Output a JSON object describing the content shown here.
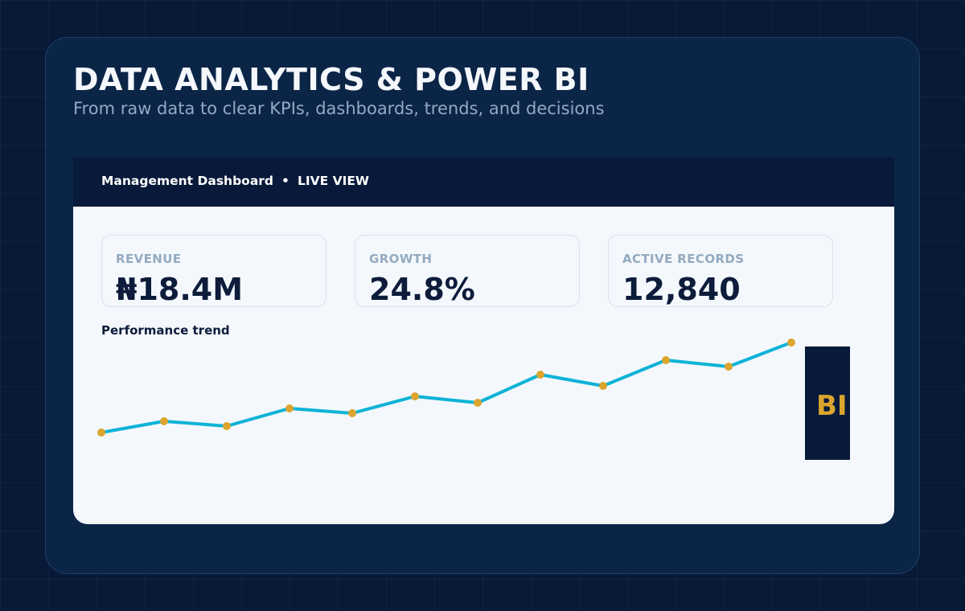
{
  "header": {
    "title": "DATA ANALYTICS & POWER BI",
    "subtitle": "From raw data to clear KPIs, dashboards, trends, and decisions"
  },
  "dashboard": {
    "name": "Management Dashboard",
    "separator": "•",
    "status": "LIVE VIEW"
  },
  "kpis": [
    {
      "label": "REVENUE",
      "value": "₦18.4M"
    },
    {
      "label": "GROWTH",
      "value": "24.8%"
    },
    {
      "label": "ACTIVE RECORDS",
      "value": "12,840"
    }
  ],
  "trend": {
    "label": "Performance trend"
  },
  "badge": {
    "text": "BI"
  },
  "colors": {
    "page_bg": "#081a38",
    "panel_bg": "#0b2547",
    "dashboard_bg": "#f4f8fc",
    "header_bar": "#08193a",
    "line": "#0db3d6",
    "marker": "#dba52e",
    "kpi_value": "#0d1c3b",
    "kpi_label": "#93aac0"
  },
  "chart_data": {
    "type": "line",
    "title": "Performance trend",
    "xlabel": "",
    "ylabel": "",
    "grid": false,
    "x": [
      1,
      2,
      3,
      4,
      5,
      6,
      7,
      8,
      9,
      10,
      11,
      12
    ],
    "values": [
      1.0,
      1.14,
      1.08,
      1.3,
      1.24,
      1.45,
      1.37,
      1.72,
      1.58,
      1.9,
      1.82,
      2.12
    ],
    "ylim": [
      0,
      2.2
    ]
  }
}
